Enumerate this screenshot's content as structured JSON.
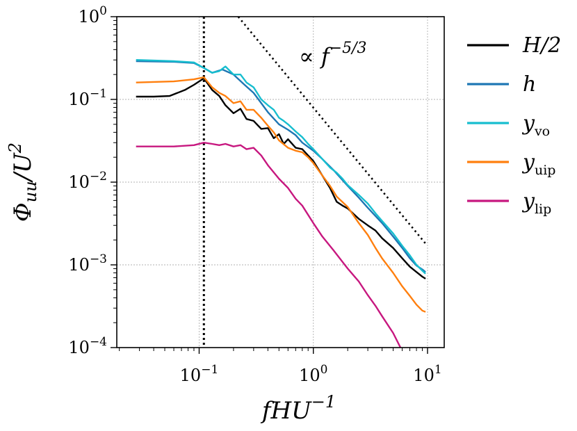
{
  "chart_data": {
    "type": "line",
    "xscale": "log",
    "yscale": "log",
    "xlim": [
      0.019,
      14
    ],
    "ylim": [
      0.0001,
      1
    ],
    "xlabel": "fHU",
    "xlabel_exp": "−1",
    "ylabel_main": "Φ",
    "ylabel_sub": "uu",
    "ylabel_tail": "/U",
    "ylabel_exp": "2",
    "x_ticks": [
      {
        "value": 0.1,
        "base": "10",
        "exp": "−1"
      },
      {
        "value": 1,
        "base": "10",
        "exp": "0"
      },
      {
        "value": 10,
        "base": "10",
        "exp": "1"
      }
    ],
    "y_ticks": [
      {
        "value": 1,
        "base": "10",
        "exp": "0"
      },
      {
        "value": 0.1,
        "base": "10",
        "exp": "−1"
      },
      {
        "value": 0.01,
        "base": "10",
        "exp": "−2"
      },
      {
        "value": 0.001,
        "base": "10",
        "exp": "−3"
      },
      {
        "value": 0.0001,
        "base": "10",
        "exp": "−4"
      }
    ],
    "grid": true,
    "legend_position": "outside-right",
    "vertical_marker": 0.11,
    "reference_line": {
      "x": [
        0.22,
        9.8
      ],
      "y": [
        1.0,
        0.00175
      ],
      "label_prefix": "∝ f",
      "label_exp": "−5/3"
    },
    "series": [
      {
        "name": "H/2",
        "label_main": "H/2",
        "label_sub": "",
        "color": "#000000",
        "x": [
          0.028,
          0.04,
          0.055,
          0.075,
          0.09,
          0.11,
          0.13,
          0.15,
          0.17,
          0.2,
          0.23,
          0.26,
          0.3,
          0.35,
          0.4,
          0.45,
          0.5,
          0.55,
          0.6,
          0.7,
          0.8,
          0.9,
          1.0,
          1.2,
          1.4,
          1.6,
          1.8,
          2.0,
          2.5,
          3.0,
          3.5,
          4.0,
          5.0,
          6.0,
          7.0,
          8.0,
          9.0,
          9.6
        ],
        "y": [
          0.108,
          0.108,
          0.11,
          0.13,
          0.15,
          0.18,
          0.13,
          0.11,
          0.085,
          0.068,
          0.077,
          0.058,
          0.055,
          0.044,
          0.045,
          0.034,
          0.038,
          0.029,
          0.033,
          0.026,
          0.025,
          0.021,
          0.018,
          0.012,
          0.0085,
          0.0058,
          0.0052,
          0.0048,
          0.0036,
          0.003,
          0.0026,
          0.0021,
          0.0016,
          0.0012,
          0.00095,
          0.00082,
          0.00072,
          0.00068
        ]
      },
      {
        "name": "h",
        "label_main": "h",
        "label_sub": "",
        "color": "#1f77b4",
        "x": [
          0.028,
          0.06,
          0.09,
          0.11,
          0.13,
          0.16,
          0.2,
          0.25,
          0.3,
          0.35,
          0.4,
          0.5,
          0.6,
          0.7,
          0.8,
          1.0,
          1.2,
          1.5,
          2.0,
          2.5,
          3.0,
          4.0,
          5.0,
          6.0,
          7.0,
          8.0,
          9.0,
          9.6
        ],
        "y": [
          0.29,
          0.285,
          0.275,
          0.24,
          0.21,
          0.23,
          0.2,
          0.15,
          0.12,
          0.09,
          0.07,
          0.05,
          0.043,
          0.037,
          0.03,
          0.024,
          0.019,
          0.014,
          0.009,
          0.0065,
          0.0049,
          0.0032,
          0.0022,
          0.0016,
          0.0012,
          0.00098,
          0.00088,
          0.00082
        ]
      },
      {
        "name": "yvo",
        "label_main": "y",
        "label_sub": "vo",
        "color": "#17becf",
        "x": [
          0.028,
          0.06,
          0.09,
          0.11,
          0.13,
          0.15,
          0.17,
          0.2,
          0.23,
          0.26,
          0.3,
          0.35,
          0.4,
          0.45,
          0.5,
          0.55,
          0.6,
          0.7,
          0.8,
          0.9,
          1.0,
          1.2,
          1.4,
          1.6,
          1.8,
          2.0,
          2.5,
          3.0,
          3.5,
          4.0,
          5.0,
          6.0,
          7.0,
          8.0,
          9.0,
          9.6
        ],
        "y": [
          0.3,
          0.29,
          0.28,
          0.24,
          0.21,
          0.22,
          0.25,
          0.2,
          0.2,
          0.16,
          0.14,
          0.1,
          0.085,
          0.075,
          0.06,
          0.055,
          0.05,
          0.041,
          0.035,
          0.029,
          0.025,
          0.019,
          0.015,
          0.013,
          0.011,
          0.0092,
          0.007,
          0.0055,
          0.0042,
          0.0034,
          0.0024,
          0.0017,
          0.0013,
          0.001,
          0.00085,
          0.00078
        ]
      },
      {
        "name": "yuip",
        "label_main": "y",
        "label_sub": "uip",
        "color": "#ff7f0e",
        "x": [
          0.028,
          0.06,
          0.09,
          0.11,
          0.13,
          0.15,
          0.17,
          0.2,
          0.23,
          0.26,
          0.3,
          0.35,
          0.4,
          0.45,
          0.5,
          0.6,
          0.7,
          0.8,
          0.9,
          1.0,
          1.2,
          1.4,
          1.6,
          2.0,
          2.5,
          3.0,
          3.5,
          4.0,
          5.0,
          6.0,
          7.0,
          8.0,
          9.0,
          9.6
        ],
        "y": [
          0.16,
          0.165,
          0.175,
          0.185,
          0.14,
          0.12,
          0.11,
          0.09,
          0.095,
          0.075,
          0.075,
          0.06,
          0.048,
          0.04,
          0.032,
          0.026,
          0.024,
          0.023,
          0.02,
          0.017,
          0.012,
          0.009,
          0.0067,
          0.005,
          0.0032,
          0.0023,
          0.0016,
          0.0012,
          0.0008,
          0.00055,
          0.00042,
          0.00033,
          0.00028,
          0.00027
        ]
      },
      {
        "name": "ylip",
        "label_main": "y",
        "label_sub": "lip",
        "color": "#c7177f",
        "x": [
          0.028,
          0.06,
          0.09,
          0.11,
          0.13,
          0.15,
          0.17,
          0.2,
          0.23,
          0.26,
          0.3,
          0.35,
          0.4,
          0.5,
          0.6,
          0.7,
          0.8,
          1.0,
          1.2,
          1.5,
          2.0,
          2.5,
          3.0,
          3.5,
          4.0,
          5.0,
          5.8
        ],
        "y": [
          0.027,
          0.027,
          0.028,
          0.03,
          0.029,
          0.028,
          0.029,
          0.027,
          0.028,
          0.025,
          0.026,
          0.021,
          0.016,
          0.011,
          0.0085,
          0.0063,
          0.0052,
          0.0032,
          0.0022,
          0.0015,
          0.0009,
          0.00063,
          0.00043,
          0.00032,
          0.00024,
          0.00015,
          0.0001
        ]
      }
    ]
  }
}
